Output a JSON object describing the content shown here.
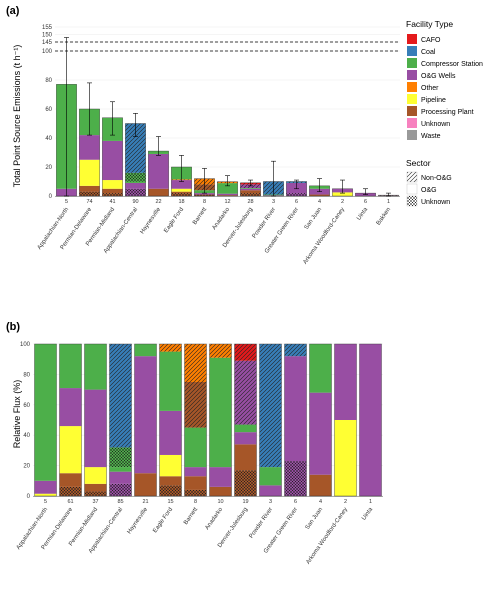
{
  "chart_data": [
    {
      "panel": "(a)",
      "type": "bar",
      "stacked": true,
      "ylabel": "Total Point Source Emissions (t h⁻¹)",
      "yticks": [
        0,
        20,
        40,
        60,
        80,
        100,
        145,
        150,
        155
      ],
      "axis_break": [
        100,
        145
      ],
      "ylim": [
        0,
        155
      ],
      "dashed_lines": [
        100,
        145
      ],
      "categories": [
        "Appalachian-North",
        "Permian-Delaware",
        "Permian-Midland",
        "Appalachian-Central",
        "Haynesville",
        "Eagle Ford",
        "Barnett",
        "Anadarko",
        "Denver-Julesburg",
        "Powder River",
        "Greater Green River",
        "San Juan",
        "Arkoma Woodford-Caney",
        "Uinta",
        "Bakken"
      ],
      "counts": [
        "5",
        "74",
        "41",
        "90",
        "22",
        "18",
        "8",
        "12",
        "28",
        "3",
        "6",
        "4",
        "2",
        "6",
        "1"
      ],
      "error_upper": [
        148,
        78,
        65,
        57,
        41,
        28,
        19,
        14,
        11,
        24,
        11,
        12,
        11,
        5,
        2
      ],
      "error_lower": [
        0,
        42,
        42,
        41,
        28,
        10,
        2,
        7,
        7,
        0,
        5,
        3,
        2,
        1,
        0
      ],
      "segments": [
        [
          {
            "type": "O&G Wells",
            "sector": "O&G",
            "value": 5
          },
          {
            "type": "Compressor Station",
            "sector": "O&G",
            "value": 72
          }
        ],
        [
          {
            "type": "Processing Plant",
            "sector": "Unknown",
            "value": 3
          },
          {
            "type": "Processing Plant",
            "sector": "O&G",
            "value": 4
          },
          {
            "type": "Pipeline",
            "sector": "O&G",
            "value": 18
          },
          {
            "type": "O&G Wells",
            "sector": "O&G",
            "value": 17
          },
          {
            "type": "Compressor Station",
            "sector": "O&G",
            "value": 18
          }
        ],
        [
          {
            "type": "Processing Plant",
            "sector": "Unknown",
            "value": 2
          },
          {
            "type": "Processing Plant",
            "sector": "O&G",
            "value": 3
          },
          {
            "type": "Pipeline",
            "sector": "O&G",
            "value": 6
          },
          {
            "type": "O&G Wells",
            "sector": "O&G",
            "value": 27
          },
          {
            "type": "Compressor Station",
            "sector": "O&G",
            "value": 16
          }
        ],
        [
          {
            "type": "O&G Wells",
            "sector": "Unknown",
            "value": 5
          },
          {
            "type": "O&G Wells",
            "sector": "O&G",
            "value": 4
          },
          {
            "type": "Compressor Station",
            "sector": "O&G",
            "value": 1
          },
          {
            "type": "Compressor Station",
            "sector": "Unknown",
            "value": 6
          },
          {
            "type": "Coal",
            "sector": "Non-O&G",
            "value": 34
          }
        ],
        [
          {
            "type": "Processing Plant",
            "sector": "O&G",
            "value": 5
          },
          {
            "type": "O&G Wells",
            "sector": "O&G",
            "value": 24
          },
          {
            "type": "Compressor Station",
            "sector": "O&G",
            "value": 2
          }
        ],
        [
          {
            "type": "Processing Plant",
            "sector": "Unknown",
            "value": 2
          },
          {
            "type": "Processing Plant",
            "sector": "O&G",
            "value": 1
          },
          {
            "type": "Pipeline",
            "sector": "O&G",
            "value": 2
          },
          {
            "type": "O&G Wells",
            "sector": "O&G",
            "value": 6
          },
          {
            "type": "Other",
            "sector": "Non-O&G",
            "value": 0.5
          },
          {
            "type": "Compressor Station",
            "sector": "O&G",
            "value": 8.5
          }
        ],
        [
          {
            "type": "Processing Plant",
            "sector": "Unknown",
            "value": 1
          },
          {
            "type": "O&G Wells",
            "sector": "O&G",
            "value": 1
          },
          {
            "type": "Compressor Station",
            "sector": "O&G",
            "value": 2
          },
          {
            "type": "Processing Plant",
            "sector": "Non-O&G",
            "value": 4
          },
          {
            "type": "Other",
            "sector": "Non-O&G",
            "value": 4
          }
        ],
        [
          {
            "type": "Processing Plant",
            "sector": "O&G",
            "value": 0.6
          },
          {
            "type": "O&G Wells",
            "sector": "O&G",
            "value": 1
          },
          {
            "type": "Compressor Station",
            "sector": "O&G",
            "value": 7.3
          },
          {
            "type": "Other",
            "sector": "Non-O&G",
            "value": 1
          }
        ],
        [
          {
            "type": "Processing Plant",
            "sector": "Unknown",
            "value": 2
          },
          {
            "type": "Processing Plant",
            "sector": "O&G",
            "value": 2
          },
          {
            "type": "O&G Wells",
            "sector": "O&G",
            "value": 1
          },
          {
            "type": "Compressor Station",
            "sector": "O&G",
            "value": 0.5
          },
          {
            "type": "O&G Wells",
            "sector": "Non-O&G",
            "value": 2.5
          },
          {
            "type": "CAFO",
            "sector": "Non-O&G",
            "value": 1.1
          }
        ],
        [
          {
            "type": "O&G Wells",
            "sector": "O&G",
            "value": 0.5
          },
          {
            "type": "Compressor Station",
            "sector": "O&G",
            "value": 0.5
          },
          {
            "type": "Coal",
            "sector": "Non-O&G",
            "value": 9
          }
        ],
        [
          {
            "type": "O&G Wells",
            "sector": "Unknown",
            "value": 2
          },
          {
            "type": "O&G Wells",
            "sector": "O&G",
            "value": 7
          },
          {
            "type": "Coal",
            "sector": "Non-O&G",
            "value": 1
          }
        ],
        [
          {
            "type": "Processing Plant",
            "sector": "O&G",
            "value": 1
          },
          {
            "type": "O&G Wells",
            "sector": "O&G",
            "value": 4
          },
          {
            "type": "Compressor Station",
            "sector": "O&G",
            "value": 2
          }
        ],
        [
          {
            "type": "Pipeline",
            "sector": "O&G",
            "value": 2.5
          },
          {
            "type": "O&G Wells",
            "sector": "O&G",
            "value": 2.5
          }
        ],
        [
          {
            "type": "O&G Wells",
            "sector": "O&G",
            "value": 2
          }
        ],
        [
          {
            "type": "Waste",
            "sector": "Non-O&G",
            "value": 0.4
          },
          {
            "type": "Unknown",
            "sector": "Unknown",
            "value": 0.2
          }
        ]
      ]
    },
    {
      "panel": "(b)",
      "type": "bar",
      "stacked": true,
      "ylabel": "Relative Flux (%)",
      "yticks": [
        0,
        20,
        40,
        60,
        80,
        100
      ],
      "ylim": [
        0,
        100
      ],
      "categories": [
        "Appalachian-North",
        "Permian-Delaware",
        "Permian-Midland",
        "Appalachian-Central",
        "Haynesville",
        "Eagle Ford",
        "Barnett",
        "Anadarko",
        "Denver-Julesburg",
        "Powder River",
        "Greater Green River",
        "San Juan",
        "Arkoma Woodford-Caney",
        "Uinta"
      ],
      "counts": [
        "5",
        "61",
        "37",
        "85",
        "21",
        "15",
        "8",
        "10",
        "19",
        "3",
        "6",
        "4",
        "2",
        "1"
      ],
      "segments": [
        [
          {
            "type": "Pipeline",
            "sector": "O&G",
            "value": 1.5
          },
          {
            "type": "O&G Wells",
            "sector": "O&G",
            "value": 8.5
          },
          {
            "type": "Compressor Station",
            "sector": "O&G",
            "value": 90
          }
        ],
        [
          {
            "type": "Processing Plant",
            "sector": "Unknown",
            "value": 6
          },
          {
            "type": "Processing Plant",
            "sector": "O&G",
            "value": 9
          },
          {
            "type": "Pipeline",
            "sector": "O&G",
            "value": 31
          },
          {
            "type": "O&G Wells",
            "sector": "O&G",
            "value": 25
          },
          {
            "type": "Compressor Station",
            "sector": "O&G",
            "value": 29
          }
        ],
        [
          {
            "type": "Processing Plant",
            "sector": "Unknown",
            "value": 3
          },
          {
            "type": "Processing Plant",
            "sector": "O&G",
            "value": 5
          },
          {
            "type": "Pipeline",
            "sector": "O&G",
            "value": 11
          },
          {
            "type": "O&G Wells",
            "sector": "O&G",
            "value": 51
          },
          {
            "type": "Compressor Station",
            "sector": "O&G",
            "value": 30
          }
        ],
        [
          {
            "type": "O&G Wells",
            "sector": "Unknown",
            "value": 8
          },
          {
            "type": "O&G Wells",
            "sector": "O&G",
            "value": 8
          },
          {
            "type": "Compressor Station",
            "sector": "O&G",
            "value": 3
          },
          {
            "type": "Compressor Station",
            "sector": "Unknown",
            "value": 13
          },
          {
            "type": "Coal",
            "sector": "Non-O&G",
            "value": 68
          }
        ],
        [
          {
            "type": "Processing Plant",
            "sector": "O&G",
            "value": 15
          },
          {
            "type": "O&G Wells",
            "sector": "O&G",
            "value": 77
          },
          {
            "type": "Compressor Station",
            "sector": "O&G",
            "value": 8
          }
        ],
        [
          {
            "type": "Processing Plant",
            "sector": "Unknown",
            "value": 7
          },
          {
            "type": "Processing Plant",
            "sector": "O&G",
            "value": 6
          },
          {
            "type": "Pipeline",
            "sector": "O&G",
            "value": 14
          },
          {
            "type": "O&G Wells",
            "sector": "O&G",
            "value": 29
          },
          {
            "type": "Compressor Station",
            "sector": "O&G",
            "value": 39
          },
          {
            "type": "Other",
            "sector": "Non-O&G",
            "value": 5
          }
        ],
        [
          {
            "type": "Processing Plant",
            "sector": "Unknown",
            "value": 4
          },
          {
            "type": "Processing Plant",
            "sector": "O&G",
            "value": 9
          },
          {
            "type": "O&G Wells",
            "sector": "O&G",
            "value": 6
          },
          {
            "type": "Compressor Station",
            "sector": "O&G",
            "value": 26
          },
          {
            "type": "Processing Plant",
            "sector": "Non-O&G",
            "value": 30
          },
          {
            "type": "Other",
            "sector": "Non-O&G",
            "value": 25
          }
        ],
        [
          {
            "type": "Processing Plant",
            "sector": "O&G",
            "value": 6
          },
          {
            "type": "O&G Wells",
            "sector": "O&G",
            "value": 13
          },
          {
            "type": "Compressor Station",
            "sector": "O&G",
            "value": 72
          },
          {
            "type": "Other",
            "sector": "Non-O&G",
            "value": 9
          }
        ],
        [
          {
            "type": "Processing Plant",
            "sector": "Unknown",
            "value": 17
          },
          {
            "type": "Processing Plant",
            "sector": "O&G",
            "value": 17
          },
          {
            "type": "O&G Wells",
            "sector": "O&G",
            "value": 8
          },
          {
            "type": "Compressor Station",
            "sector": "O&G",
            "value": 5
          },
          {
            "type": "O&G Wells",
            "sector": "Non-O&G",
            "value": 42
          },
          {
            "type": "CAFO",
            "sector": "Non-O&G",
            "value": 11
          }
        ],
        [
          {
            "type": "O&G Wells",
            "sector": "O&G",
            "value": 7
          },
          {
            "type": "Compressor Station",
            "sector": "O&G",
            "value": 12
          },
          {
            "type": "Coal",
            "sector": "Non-O&G",
            "value": 81
          }
        ],
        [
          {
            "type": "O&G Wells",
            "sector": "Unknown",
            "value": 23
          },
          {
            "type": "O&G Wells",
            "sector": "O&G",
            "value": 69
          },
          {
            "type": "Coal",
            "sector": "Non-O&G",
            "value": 8
          }
        ],
        [
          {
            "type": "Processing Plant",
            "sector": "O&G",
            "value": 14
          },
          {
            "type": "O&G Wells",
            "sector": "O&G",
            "value": 54
          },
          {
            "type": "Compressor Station",
            "sector": "O&G",
            "value": 32
          }
        ],
        [
          {
            "type": "Pipeline",
            "sector": "O&G",
            "value": 50
          },
          {
            "type": "O&G Wells",
            "sector": "O&G",
            "value": 50
          }
        ],
        [
          {
            "type": "O&G Wells",
            "sector": "O&G",
            "value": 100
          }
        ]
      ]
    }
  ],
  "legend": {
    "facility_title": "Facility Type",
    "facility": [
      {
        "name": "CAFO",
        "color": "#e41a1c"
      },
      {
        "name": "Coal",
        "color": "#377eb8"
      },
      {
        "name": "Compressor Station",
        "color": "#4daf4a"
      },
      {
        "name": "O&G Wells",
        "color": "#984ea3"
      },
      {
        "name": "Other",
        "color": "#ff7f00"
      },
      {
        "name": "Pipeline",
        "color": "#ffff33"
      },
      {
        "name": "Processing Plant",
        "color": "#a65628"
      },
      {
        "name": "Unknown",
        "color": "#f781bf"
      },
      {
        "name": "Waste",
        "color": "#999999"
      }
    ],
    "sector_title": "Sector",
    "sector": [
      {
        "name": "Non-O&G",
        "pattern": "hatch"
      },
      {
        "name": "O&G",
        "pattern": "none"
      },
      {
        "name": "Unknown",
        "pattern": "crosshatch"
      }
    ]
  }
}
